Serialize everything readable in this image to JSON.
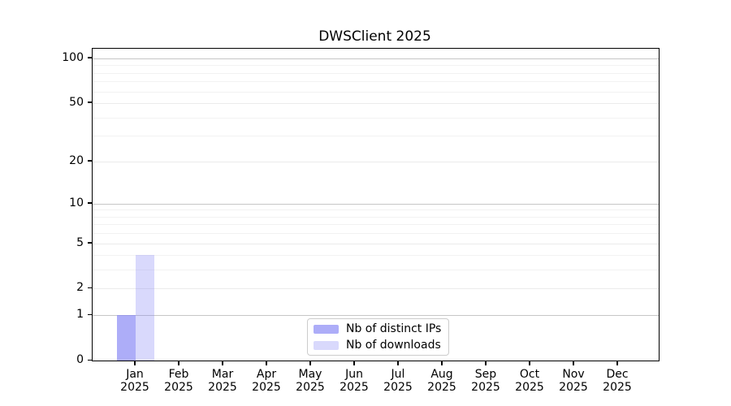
{
  "chart_data": {
    "type": "bar",
    "title": "DWSClient 2025",
    "categories": [
      {
        "month": "Jan",
        "year": "2025"
      },
      {
        "month": "Feb",
        "year": "2025"
      },
      {
        "month": "Mar",
        "year": "2025"
      },
      {
        "month": "Apr",
        "year": "2025"
      },
      {
        "month": "May",
        "year": "2025"
      },
      {
        "month": "Jun",
        "year": "2025"
      },
      {
        "month": "Jul",
        "year": "2025"
      },
      {
        "month": "Aug",
        "year": "2025"
      },
      {
        "month": "Sep",
        "year": "2025"
      },
      {
        "month": "Oct",
        "year": "2025"
      },
      {
        "month": "Nov",
        "year": "2025"
      },
      {
        "month": "Dec",
        "year": "2025"
      }
    ],
    "series": [
      {
        "name": "Nb of distinct IPs",
        "color": "rgba(130,130,245,0.66)",
        "values": [
          1,
          0,
          0,
          0,
          0,
          0,
          0,
          0,
          0,
          0,
          0,
          0
        ]
      },
      {
        "name": "Nb of downloads",
        "color": "rgba(130,130,245,0.30)",
        "values": [
          4,
          0,
          0,
          0,
          0,
          0,
          0,
          0,
          0,
          0,
          0,
          0
        ]
      }
    ],
    "y_axis": {
      "scale": "log1p",
      "ticks": [
        0,
        1,
        2,
        5,
        10,
        20,
        50,
        100
      ],
      "range": [
        0,
        116
      ]
    },
    "grid": {
      "decade_lines": [
        1,
        10,
        100
      ],
      "labeled_lines": [
        2,
        5,
        20,
        50
      ],
      "minor_lines": [
        3,
        4,
        6,
        7,
        8,
        9,
        30,
        40,
        60,
        70,
        80,
        90
      ]
    },
    "legend_position": "lower center",
    "xlabel": "",
    "ylabel": ""
  }
}
